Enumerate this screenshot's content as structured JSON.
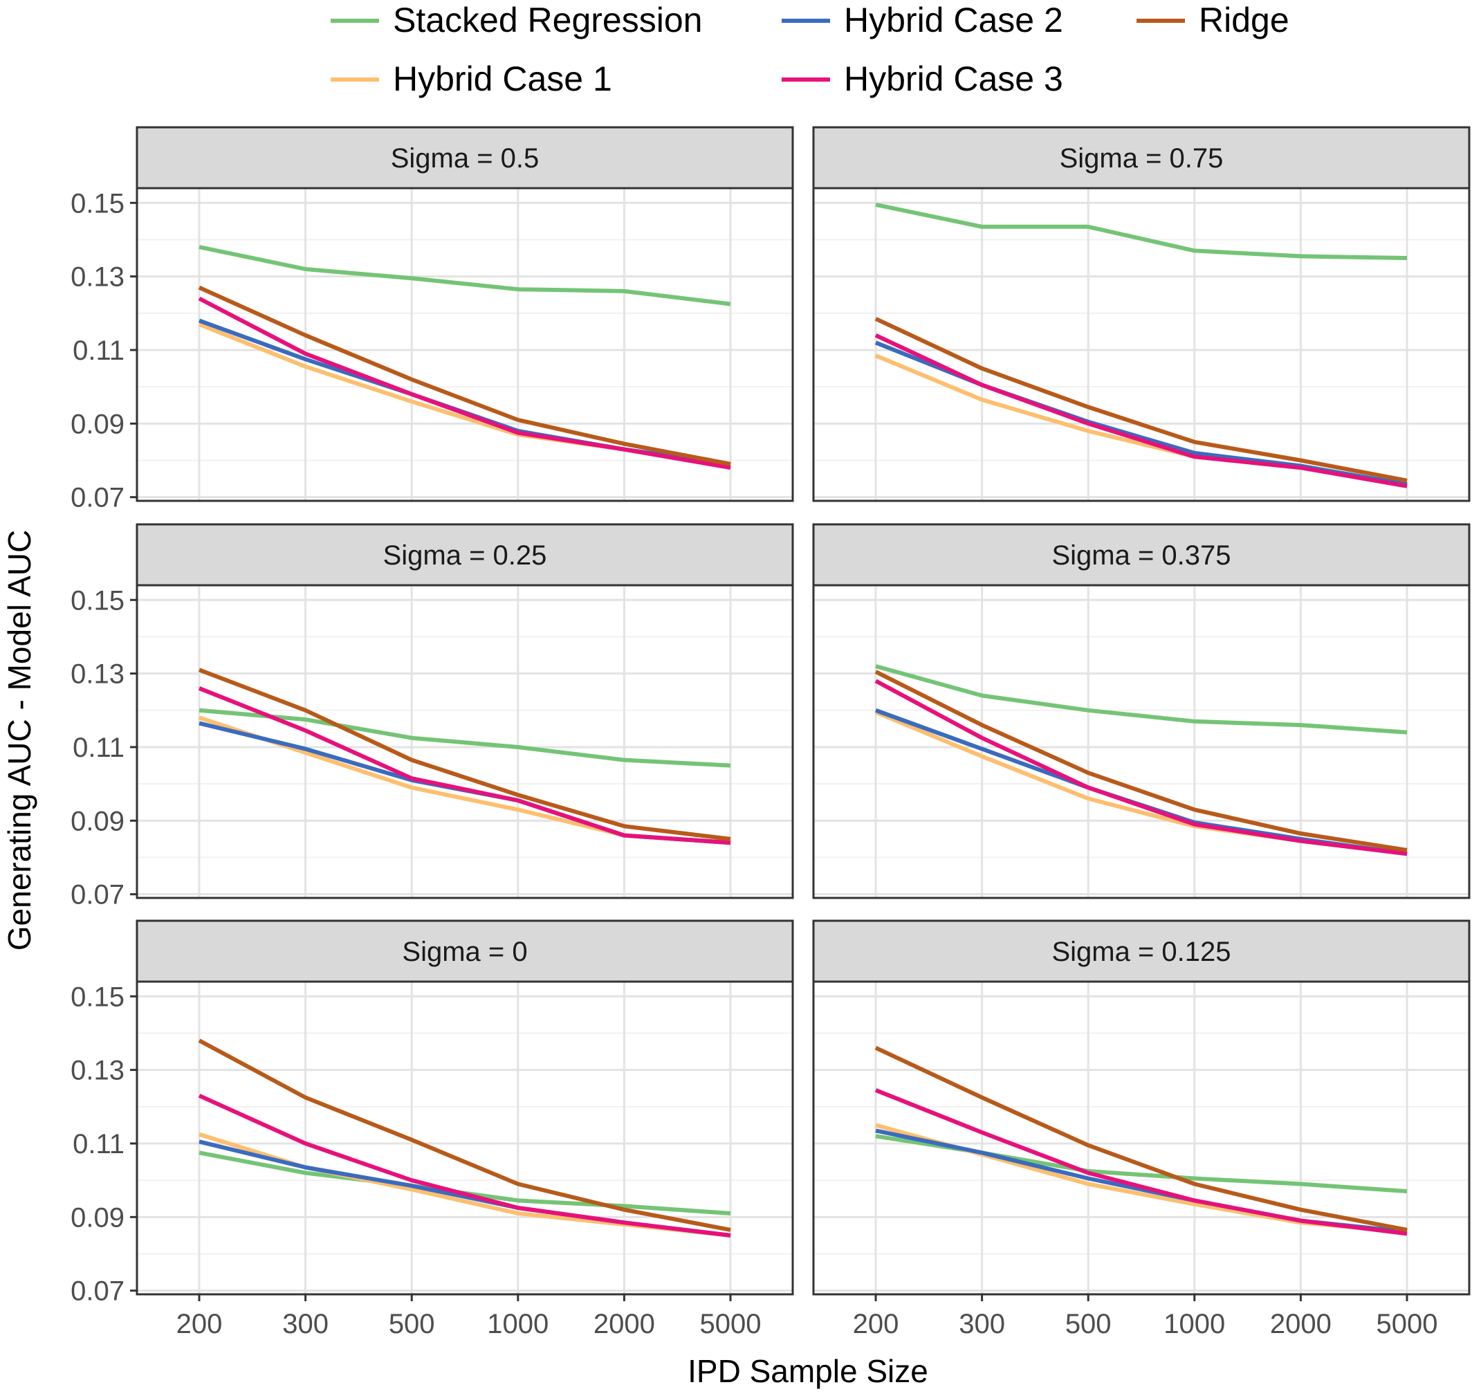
{
  "colors": {
    "stacked": "#74c476",
    "hybrid1": "#fdbf6f",
    "hybrid2": "#3a6bbf",
    "hybrid3": "#e7117a",
    "ridge": "#b85a1a"
  },
  "chart_data": {
    "type": "line",
    "facets_layout": "3 rows x 2 columns",
    "xlabel": "IPD Sample Size",
    "ylabel": "Generating AUC - Model AUC",
    "x_categories": [
      "200",
      "300",
      "500",
      "1000",
      "2000",
      "5000"
    ],
    "y_ticks": [
      "0.07",
      "0.09",
      "0.11",
      "0.13",
      "0.15"
    ],
    "ylim": [
      0.069,
      0.154
    ],
    "legend": {
      "placement": "top",
      "entries": [
        {
          "key": "stacked",
          "label": "Stacked Regression"
        },
        {
          "key": "hybrid2",
          "label": "Hybrid Case 2"
        },
        {
          "key": "ridge",
          "label": "Ridge"
        },
        {
          "key": "hybrid1",
          "label": "Hybrid Case 1"
        },
        {
          "key": "hybrid3",
          "label": "Hybrid Case 3"
        }
      ]
    },
    "grid": true,
    "panels": [
      {
        "title": "Sigma = 0.5",
        "series": [
          {
            "key": "stacked",
            "values": [
              0.138,
              0.132,
              0.1295,
              0.1265,
              0.126,
              0.1225
            ]
          },
          {
            "key": "hybrid1",
            "values": [
              0.117,
              0.1055,
              0.096,
              0.087,
              0.083,
              0.0785
            ]
          },
          {
            "key": "hybrid2",
            "values": [
              0.118,
              0.1075,
              0.098,
              0.088,
              0.083,
              0.079
            ]
          },
          {
            "key": "hybrid3",
            "values": [
              0.124,
              0.109,
              0.098,
              0.0875,
              0.083,
              0.078
            ]
          },
          {
            "key": "ridge",
            "values": [
              0.127,
              0.114,
              0.102,
              0.091,
              0.0845,
              0.079
            ]
          }
        ]
      },
      {
        "title": "Sigma = 0.75",
        "series": [
          {
            "key": "stacked",
            "values": [
              0.1495,
              0.1435,
              0.1435,
              0.137,
              0.1355,
              0.135
            ]
          },
          {
            "key": "hybrid1",
            "values": [
              0.1085,
              0.0965,
              0.088,
              0.081,
              0.078,
              0.0735
            ]
          },
          {
            "key": "hybrid2",
            "values": [
              0.112,
              0.1005,
              0.0905,
              0.082,
              0.0785,
              0.0735
            ]
          },
          {
            "key": "hybrid3",
            "values": [
              0.114,
              0.1005,
              0.09,
              0.081,
              0.078,
              0.073
            ]
          },
          {
            "key": "ridge",
            "values": [
              0.1185,
              0.105,
              0.0945,
              0.085,
              0.08,
              0.0745
            ]
          }
        ]
      },
      {
        "title": "Sigma = 0.25",
        "series": [
          {
            "key": "stacked",
            "values": [
              0.12,
              0.1175,
              0.1125,
              0.11,
              0.1065,
              0.105
            ]
          },
          {
            "key": "hybrid1",
            "values": [
              0.118,
              0.1085,
              0.099,
              0.093,
              0.086,
              0.084
            ]
          },
          {
            "key": "hybrid2",
            "values": [
              0.1165,
              0.1095,
              0.101,
              0.0955,
              0.086,
              0.084
            ]
          },
          {
            "key": "hybrid3",
            "values": [
              0.126,
              0.1145,
              0.1015,
              0.0955,
              0.086,
              0.084
            ]
          },
          {
            "key": "ridge",
            "values": [
              0.131,
              0.12,
              0.1065,
              0.097,
              0.0885,
              0.085
            ]
          }
        ]
      },
      {
        "title": "Sigma = 0.375",
        "series": [
          {
            "key": "stacked",
            "values": [
              0.132,
              0.124,
              0.12,
              0.117,
              0.116,
              0.114
            ]
          },
          {
            "key": "hybrid1",
            "values": [
              0.1195,
              0.1075,
              0.096,
              0.0885,
              0.0845,
              0.081
            ]
          },
          {
            "key": "hybrid2",
            "values": [
              0.12,
              0.1095,
              0.099,
              0.0895,
              0.085,
              0.081
            ]
          },
          {
            "key": "hybrid3",
            "values": [
              0.128,
              0.1125,
              0.099,
              0.089,
              0.0845,
              0.081
            ]
          },
          {
            "key": "ridge",
            "values": [
              0.1305,
              0.116,
              0.103,
              0.093,
              0.0865,
              0.082
            ]
          }
        ]
      },
      {
        "title": "Sigma = 0",
        "series": [
          {
            "key": "stacked",
            "values": [
              0.1075,
              0.102,
              0.0985,
              0.0945,
              0.093,
              0.091
            ]
          },
          {
            "key": "hybrid1",
            "values": [
              0.1125,
              0.1035,
              0.0975,
              0.091,
              0.088,
              0.085
            ]
          },
          {
            "key": "hybrid2",
            "values": [
              0.1105,
              0.1035,
              0.0985,
              0.0925,
              0.0885,
              0.085
            ]
          },
          {
            "key": "hybrid3",
            "values": [
              0.123,
              0.11,
              0.1,
              0.0925,
              0.0885,
              0.085
            ]
          },
          {
            "key": "ridge",
            "values": [
              0.138,
              0.1225,
              0.111,
              0.099,
              0.092,
              0.0865
            ]
          }
        ]
      },
      {
        "title": "Sigma = 0.125",
        "series": [
          {
            "key": "stacked",
            "values": [
              0.112,
              0.1075,
              0.1025,
              0.1005,
              0.099,
              0.097
            ]
          },
          {
            "key": "hybrid1",
            "values": [
              0.115,
              0.107,
              0.099,
              0.0935,
              0.0885,
              0.086
            ]
          },
          {
            "key": "hybrid2",
            "values": [
              0.1135,
              0.1075,
              0.1005,
              0.0945,
              0.089,
              0.086
            ]
          },
          {
            "key": "hybrid3",
            "values": [
              0.1245,
              0.113,
              0.102,
              0.0945,
              0.089,
              0.0855
            ]
          },
          {
            "key": "ridge",
            "values": [
              0.136,
              0.1225,
              0.1095,
              0.099,
              0.092,
              0.0865
            ]
          }
        ]
      }
    ]
  }
}
